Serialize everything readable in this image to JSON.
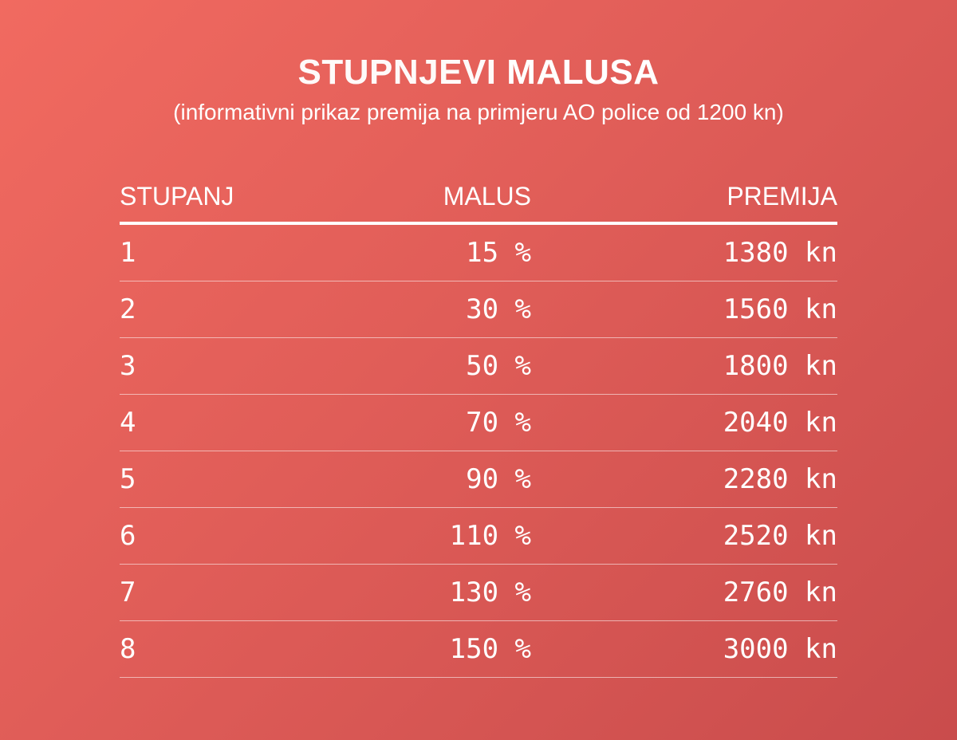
{
  "header": {
    "title_part1": "STUPNJEVI",
    "title_part2": "MALUSA",
    "subtitle": "(informativni prikaz premija na primjeru AO police od 1200 kn)"
  },
  "table": {
    "columns": [
      "STUPANJ",
      "MALUS",
      "PREMIJA"
    ],
    "rows": [
      [
        "1",
        "15 %",
        "1380 kn"
      ],
      [
        "2",
        "30 %",
        "1560 kn"
      ],
      [
        "3",
        "50 %",
        "1800 kn"
      ],
      [
        "4",
        "70 %",
        "2040 kn"
      ],
      [
        "5",
        "90 %",
        "2280 kn"
      ],
      [
        "6",
        "110 %",
        "2520 kn"
      ],
      [
        "7",
        "130 %",
        "2760 kn"
      ],
      [
        "8",
        "150 %",
        "3000 kn"
      ]
    ]
  },
  "colors": {
    "background_start": "#f16a60",
    "background_end": "#c94c4c",
    "text": "#ffffff"
  }
}
